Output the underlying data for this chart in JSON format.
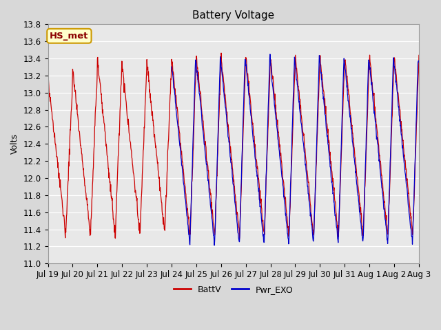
{
  "title": "Battery Voltage",
  "ylabel": "Volts",
  "ylim": [
    11.0,
    13.8
  ],
  "yticks": [
    11.0,
    11.2,
    11.4,
    11.6,
    11.8,
    12.0,
    12.2,
    12.4,
    12.6,
    12.8,
    13.0,
    13.2,
    13.4,
    13.6,
    13.8
  ],
  "x_labels": [
    "Jul 19",
    "Jul 20",
    "Jul 21",
    "Jul 22",
    "Jul 23",
    "Jul 24",
    "Jul 25",
    "Jul 26",
    "Jul 27",
    "Jul 28",
    "Jul 29",
    "Jul 30",
    "Jul 31",
    "Aug 1",
    "Aug 2",
    "Aug 3"
  ],
  "batt_color": "#cc0000",
  "exo_color": "#0000cc",
  "fig_bg": "#d8d8d8",
  "plot_bg": "#e8e8e8",
  "grid_color": "#ffffff",
  "annotation_text": "HS_met",
  "annotation_fg": "#8b0000",
  "annotation_bg": "#ffffcc",
  "annotation_border": "#cc9900",
  "legend_items": [
    "BattV",
    "Pwr_EXO"
  ],
  "title_fontsize": 11,
  "label_fontsize": 9,
  "tick_fontsize": 8.5
}
